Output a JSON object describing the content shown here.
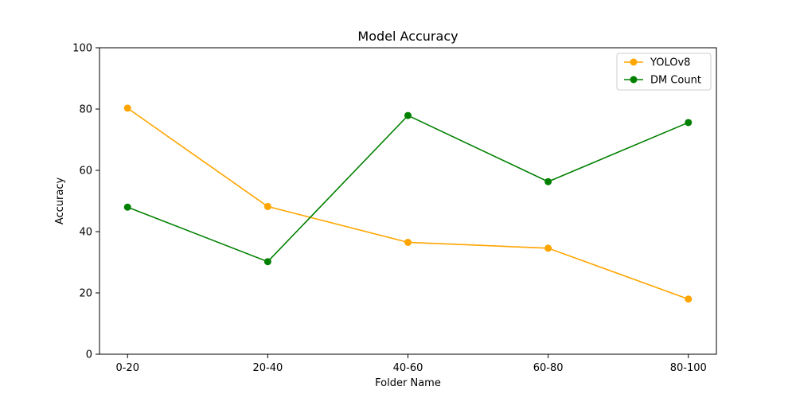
{
  "chart_data": {
    "type": "line",
    "title": "Model Accuracy",
    "xlabel": "Folder Name",
    "ylabel": "Accuracy",
    "categories": [
      "0-20",
      "20-40",
      "40-60",
      "60-80",
      "80-100"
    ],
    "ylim": [
      0,
      100
    ],
    "yticks": [
      0,
      20,
      40,
      60,
      80,
      100
    ],
    "grid": false,
    "legend_position": "top-right",
    "series": [
      {
        "name": "YOLOv8",
        "color": "#ffa500",
        "marker": "circle",
        "values": [
          80.3,
          48.2,
          36.5,
          34.6,
          18.0
        ]
      },
      {
        "name": "DM Count",
        "color": "#008000",
        "marker": "circle",
        "values": [
          48.0,
          30.2,
          77.9,
          56.3,
          75.6
        ]
      }
    ]
  }
}
